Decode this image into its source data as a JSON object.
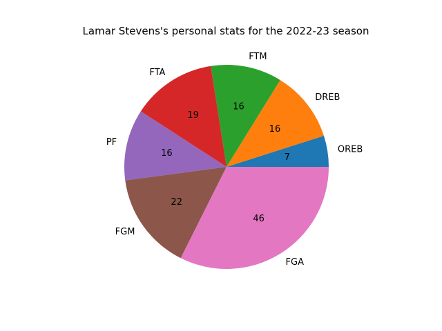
{
  "chart_data": {
    "type": "pie",
    "title": "Lamar Stevens's personal stats for the 2022-23 season",
    "labels": [
      "OREB",
      "DREB",
      "FTM",
      "FTA",
      "PF",
      "FGM",
      "FGA"
    ],
    "values": [
      7,
      16,
      16,
      19,
      16,
      22,
      46
    ],
    "colors": [
      "#1f77b4",
      "#ff7f0e",
      "#2ca02c",
      "#d62728",
      "#9467bd",
      "#8c564b",
      "#e377c2"
    ],
    "start_angle_deg": 0,
    "direction": "counterclockwise",
    "legend": "none"
  }
}
